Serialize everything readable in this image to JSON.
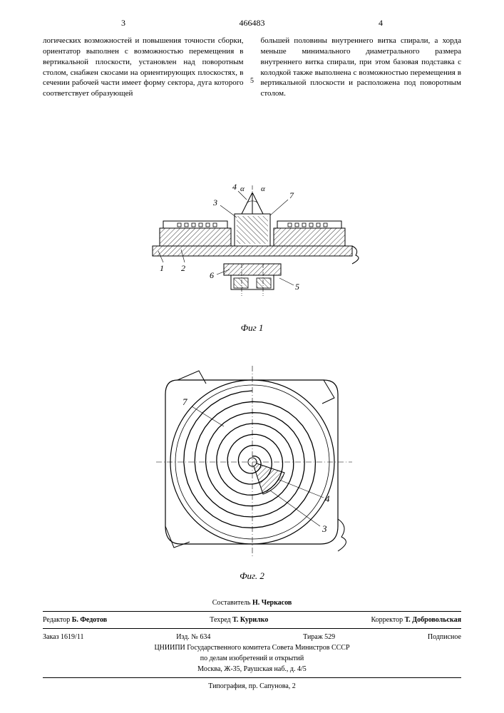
{
  "patent_number": "466483",
  "page_left_num": "3",
  "page_right_num": "4",
  "margin_num": "5",
  "left_column_text": "логических возможностей и повышения точности сборки, ориентатор выполнен с возможностью перемещения в вертикальной плоскости, установлен над поворотным столом, снабжен скосами на ориентирующих плоскостях, в сечении рабочей части имеет форму сектора, дуга которого соответствует образующей",
  "right_column_text": "большей половины внутреннего витка спирали, а хорда меньше минимального диаметрального размера внутреннего витка спирали, при этом базовая подставка с колодкой также выполнена с возможностью перемещения в вертикальной плоскости и расположена под поворотным столом.",
  "fig1": {
    "caption": "Фиг 1",
    "labels": {
      "l1": "1",
      "l2": "2",
      "l3": "3",
      "l4": "4",
      "l5": "5",
      "l6": "6",
      "l7": "7",
      "alpha1": "α",
      "alpha2": "α"
    },
    "stroke": "#000000",
    "hatch_spacing": 4
  },
  "fig2": {
    "caption": "Фиг. 2",
    "labels": {
      "l3": "3",
      "l4": "4",
      "l7": "7"
    },
    "spiral_turns": 6,
    "stroke": "#000000"
  },
  "footer": {
    "compiler_label": "Составитель",
    "compiler": "Н. Черкасов",
    "editor_label": "Редактор",
    "editor": "Б. Федотов",
    "techred_label": "Техред",
    "techred": "Т. Курилко",
    "corrector_label": "Корректор",
    "corrector": "Т. Добровольская",
    "order_label": "Заказ 1619/11",
    "izd_label": "Изд. № 634",
    "tirazh_label": "Тираж 529",
    "sign_label": "Подписное",
    "org1": "ЦНИИПИ Государственного комитета Совета Министров СССР",
    "org2": "по делам изобретений и открытий",
    "address": "Москва, Ж-35, Раушская наб., д. 4/5",
    "typography": "Типография, пр. Сапунова, 2"
  }
}
